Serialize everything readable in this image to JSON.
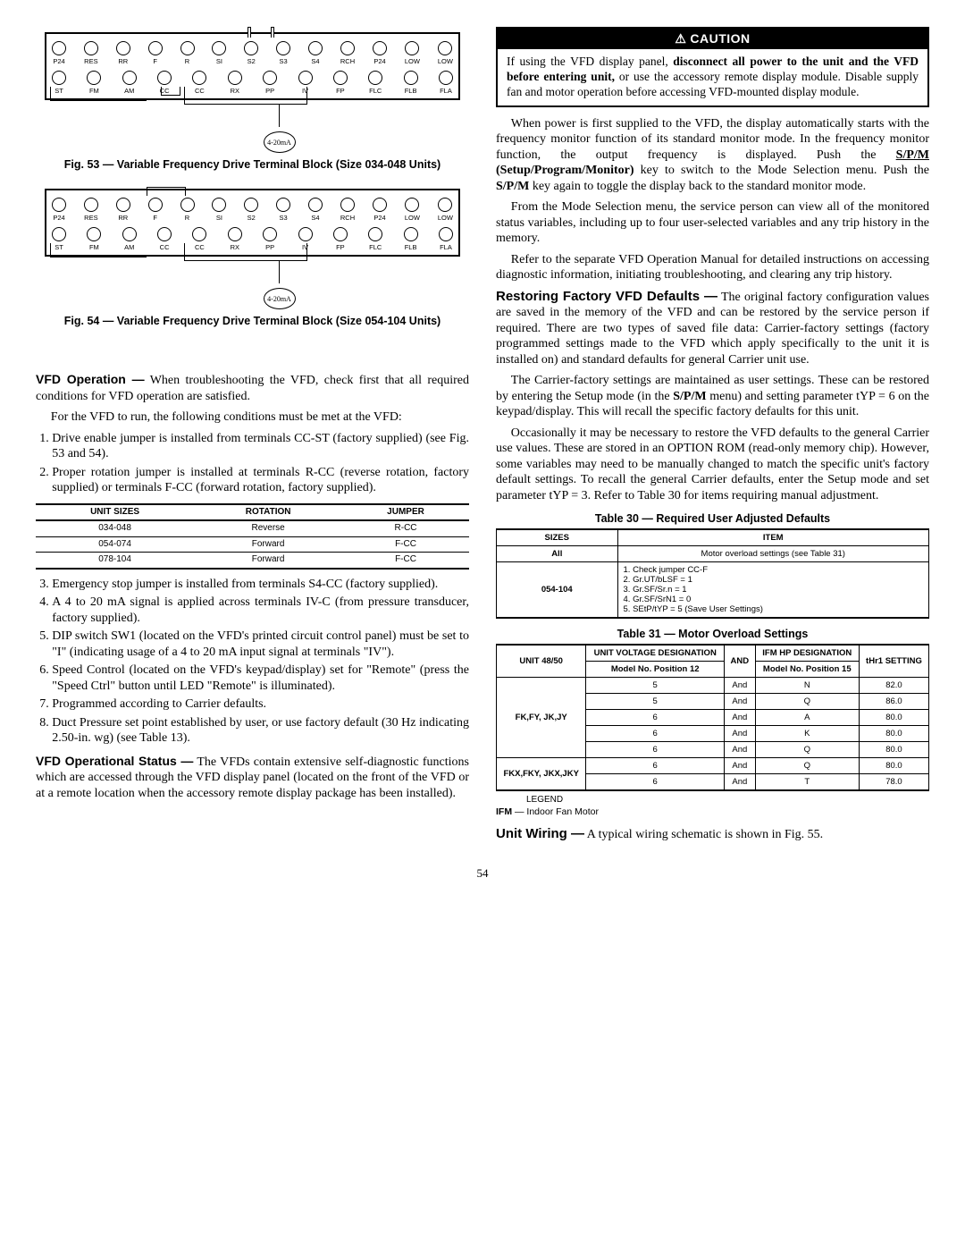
{
  "fig53": {
    "caption": "Fig. 53 — Variable Frequency Drive Terminal Block (Size 034-048 Units)",
    "row1": [
      "P24",
      "RES",
      "RR",
      "F",
      "R",
      "SI",
      "S2",
      "S3",
      "S4",
      "RCH",
      "P24",
      "LOW",
      "LOW"
    ],
    "row2": [
      "ST",
      "FM",
      "AM",
      "CC",
      "CC",
      "RX",
      "PP",
      "IV",
      "FP",
      "FLC",
      "FLB",
      "FLA"
    ],
    "transducer_label": "4-20mA"
  },
  "fig54": {
    "caption": "Fig. 54 — Variable Frequency Drive Terminal Block (Size 054-104 Units)",
    "row1": [
      "P24",
      "RES",
      "RR",
      "F",
      "R",
      "SI",
      "S2",
      "S3",
      "S4",
      "RCH",
      "P24",
      "LOW",
      "LOW"
    ],
    "row2": [
      "ST",
      "FM",
      "AM",
      "CC",
      "CC",
      "RX",
      "PP",
      "IV",
      "FP",
      "FLC",
      "FLB",
      "FLA"
    ],
    "transducer_label": "4-20mA"
  },
  "vfd_operation": {
    "runin": "VFD Operation —",
    "lead": " When troubleshooting the VFD, check first that all required conditions for VFD operation are satisfied.",
    "p2": "For the VFD to run, the following conditions must be met at the VFD:",
    "list_a": [
      "Drive enable jumper is installed from terminals CC-ST (factory supplied) (see Fig. 53 and 54).",
      "Proper rotation jumper is installed at terminals R-CC (reverse rotation, factory supplied) or terminals F-CC (forward rotation, factory supplied)."
    ],
    "rot_table": {
      "headers": [
        "UNIT SIZES",
        "ROTATION",
        "JUMPER"
      ],
      "rows": [
        [
          "034-048",
          "Reverse",
          "R-CC"
        ],
        [
          "054-074",
          "Forward",
          "F-CC"
        ],
        [
          "078-104",
          "Forward",
          "F-CC"
        ]
      ]
    },
    "list_b": [
      "Emergency stop jumper is installed from terminals S4-CC (factory supplied).",
      "A 4 to 20 mA signal is applied across terminals IV-C (from pressure transducer, factory supplied).",
      "DIP switch SW1 (located on the VFD's printed circuit control panel) must be set to \"I\" (indicating usage of a 4 to 20 mA input signal at terminals \"IV\").",
      "Speed Control (located on the VFD's keypad/display) set for \"Remote\" (press the \"Speed Ctrl\" button until LED \"Remote\" is illuminated).",
      "Programmed according to Carrier defaults.",
      "Duct Pressure set point established by user, or use factory default (30 Hz indicating 2.50-in. wg) (see Table 13)."
    ]
  },
  "vfd_status": {
    "runin": "VFD Operational Status —",
    "text": " The VFDs contain extensive self-diagnostic functions which are accessed through the VFD display panel (located on the front of the VFD or at a remote location when the accessory remote display package has been installed)."
  },
  "caution": {
    "header": "CAUTION",
    "body_prefix": "If using the VFD display panel, ",
    "bold": "disconnect all power to the unit and the VFD before entering unit,",
    "body_suffix": " or use the accessory remote display module. Disable supply fan and motor operation before accessing VFD-mounted display module."
  },
  "right_paras": {
    "p1a": "When power is first supplied to the VFD, the display automatically starts with the frequency monitor function of its standard monitor mode. In the frequency monitor function, the output frequency is displayed. Push the ",
    "p1_key1": "S/P/M",
    "p1_key1_paren": " (Setup/Program/Monitor)",
    "p1b": " key to switch to the Mode Selection menu. Push the ",
    "p1_key2": "S/P/M",
    "p1c": " key again to toggle the display back to the standard monitor mode.",
    "p2": "From the Mode Selection menu, the service person can view all of the monitored status variables, including up to four user-selected variables and any trip history in the memory.",
    "p3": "Refer to the separate VFD Operation Manual for detailed instructions on accessing diagnostic information, initiating troubleshooting, and clearing any trip history."
  },
  "restoring": {
    "runin": "Restoring Factory VFD Defaults —",
    "p1": " The original factory configuration values are saved in the memory of the VFD and can be restored by the service person if required. There are two types of saved file data: Carrier-factory settings (factory programmed settings made to the VFD which apply specifically to the unit it is installed on) and standard defaults for general Carrier unit use.",
    "p2a": "The Carrier-factory settings are maintained as user settings. These can be restored by entering the Setup mode (in the ",
    "p2_key": "S/P/M",
    "p2b": " menu) and setting parameter tYP = 6 on the keypad/display. This will recall the specific factory defaults for this unit.",
    "p3": "Occasionally it may be necessary to restore the VFD defaults to the general Carrier use values. These are stored in an OPTION ROM (read-only memory chip). However, some variables may need to be manually changed to match the specific unit's factory default settings. To recall the general Carrier defaults, enter the Setup mode and set parameter tYP = 3. Refer to Table 30 for items requiring manual adjustment."
  },
  "table30": {
    "title": "Table 30 — Required User Adjusted Defaults",
    "headers": [
      "SIZES",
      "ITEM"
    ],
    "rows": [
      {
        "sizes": "All",
        "item": "Motor overload settings (see Table 31)"
      },
      {
        "sizes": "054-104",
        "items": [
          "1.  Check jumper CC-F",
          "2.  Gr.UT/bLSF = 1",
          "3.  Gr.SF/Sr.n = 1",
          "4.  Gr.SF/SrN1 = 0",
          "5.  SEtP/tYP = 5 (Save User Settings)"
        ]
      }
    ]
  },
  "table31": {
    "title": "Table 31 — Motor Overload Settings",
    "head": {
      "c1": "UNIT 48/50",
      "c2a": "UNIT VOLTAGE DESIGNATION",
      "c2b": "Model No. Position 12",
      "c3": "AND",
      "c4a": "IFM HP DESIGNATION",
      "c4b": "Model No. Position 15",
      "c5": "tHr1 SETTING"
    },
    "groups": [
      {
        "unit": "FK,FY, JK,JY",
        "rows": [
          [
            "5",
            "And",
            "N",
            "82.0"
          ],
          [
            "5",
            "And",
            "Q",
            "86.0"
          ],
          [
            "6",
            "And",
            "A",
            "80.0"
          ],
          [
            "6",
            "And",
            "K",
            "80.0"
          ],
          [
            "6",
            "And",
            "Q",
            "80.0"
          ]
        ]
      },
      {
        "unit": "FKX,FKY, JKX,JKY",
        "rows": [
          [
            "6",
            "And",
            "Q",
            "80.0"
          ],
          [
            "6",
            "And",
            "T",
            "78.0"
          ]
        ]
      }
    ],
    "legend_label": "LEGEND",
    "legend_abbr": "IFM",
    "legend_sep": " — ",
    "legend_def": "Indoor Fan Motor"
  },
  "unit_wiring": {
    "runin": "Unit Wiring —",
    "text": " A typical wiring schematic is shown in Fig. 55."
  },
  "page_number": "54"
}
